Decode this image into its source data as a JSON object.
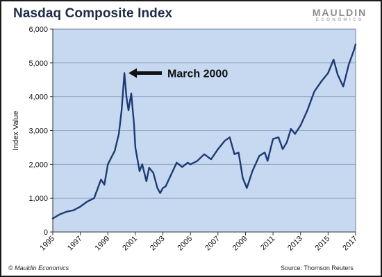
{
  "header": {
    "title": "Nasdaq Composite Index",
    "logo_main": "MAULDIN",
    "logo_sub": "ECONOMICS"
  },
  "footer": {
    "copyright": "© Mauldin Economics",
    "source": "Source: Thomson Reuters"
  },
  "colors": {
    "plot_background": "#c6d9f1",
    "series_line": "#1f3b73",
    "gridline": "#8a9bb8",
    "title_text": "#1f2a44"
  },
  "chart_data": {
    "type": "line",
    "title": "Nasdaq Composite Index",
    "xlabel": "",
    "ylabel": "Index Value",
    "xlim": [
      1995,
      2017
    ],
    "ylim": [
      0,
      6000
    ],
    "grid": true,
    "x_ticks": [
      1995,
      1997,
      1999,
      2001,
      2003,
      2005,
      2007,
      2009,
      2011,
      2013,
      2015,
      2017
    ],
    "y_ticks": [
      {
        "value": 0,
        "label": "0"
      },
      {
        "value": 1000,
        "label": "1,000"
      },
      {
        "value": 2000,
        "label": "2,000"
      },
      {
        "value": 3000,
        "label": "3,000"
      },
      {
        "value": 4000,
        "label": "4,000"
      },
      {
        "value": 5000,
        "label": "5,000"
      },
      {
        "value": 6000,
        "label": "6,000"
      }
    ],
    "series": [
      {
        "points": [
          [
            1995.0,
            400
          ],
          [
            1995.5,
            520
          ],
          [
            1996.0,
            600
          ],
          [
            1996.5,
            640
          ],
          [
            1997.0,
            750
          ],
          [
            1997.5,
            900
          ],
          [
            1998.0,
            1000
          ],
          [
            1998.5,
            1550
          ],
          [
            1998.75,
            1400
          ],
          [
            1999.0,
            2000
          ],
          [
            1999.5,
            2400
          ],
          [
            1999.8,
            2900
          ],
          [
            2000.0,
            3600
          ],
          [
            2000.2,
            4700
          ],
          [
            2000.35,
            4000
          ],
          [
            2000.5,
            3600
          ],
          [
            2000.7,
            4100
          ],
          [
            2000.9,
            3200
          ],
          [
            2001.0,
            2500
          ],
          [
            2001.3,
            1800
          ],
          [
            2001.5,
            2000
          ],
          [
            2001.8,
            1500
          ],
          [
            2002.0,
            1900
          ],
          [
            2002.3,
            1750
          ],
          [
            2002.6,
            1300
          ],
          [
            2002.8,
            1150
          ],
          [
            2003.0,
            1300
          ],
          [
            2003.2,
            1350
          ],
          [
            2003.6,
            1700
          ],
          [
            2004.0,
            2050
          ],
          [
            2004.4,
            1920
          ],
          [
            2004.8,
            2050
          ],
          [
            2005.0,
            2000
          ],
          [
            2005.5,
            2100
          ],
          [
            2006.0,
            2300
          ],
          [
            2006.5,
            2150
          ],
          [
            2007.0,
            2450
          ],
          [
            2007.5,
            2700
          ],
          [
            2007.85,
            2800
          ],
          [
            2008.2,
            2300
          ],
          [
            2008.5,
            2350
          ],
          [
            2008.8,
            1600
          ],
          [
            2009.1,
            1300
          ],
          [
            2009.5,
            1800
          ],
          [
            2010.0,
            2250
          ],
          [
            2010.4,
            2350
          ],
          [
            2010.6,
            2100
          ],
          [
            2011.0,
            2750
          ],
          [
            2011.4,
            2800
          ],
          [
            2011.7,
            2450
          ],
          [
            2012.0,
            2650
          ],
          [
            2012.3,
            3050
          ],
          [
            2012.6,
            2900
          ],
          [
            2013.0,
            3150
          ],
          [
            2013.5,
            3600
          ],
          [
            2014.0,
            4150
          ],
          [
            2014.5,
            4450
          ],
          [
            2015.0,
            4700
          ],
          [
            2015.4,
            5100
          ],
          [
            2015.7,
            4650
          ],
          [
            2016.1,
            4300
          ],
          [
            2016.5,
            4950
          ],
          [
            2016.9,
            5400
          ],
          [
            2017.0,
            5550
          ]
        ]
      }
    ],
    "annotations": [
      {
        "text": "March 2000",
        "x": 2000.2,
        "y": 4700
      }
    ]
  }
}
